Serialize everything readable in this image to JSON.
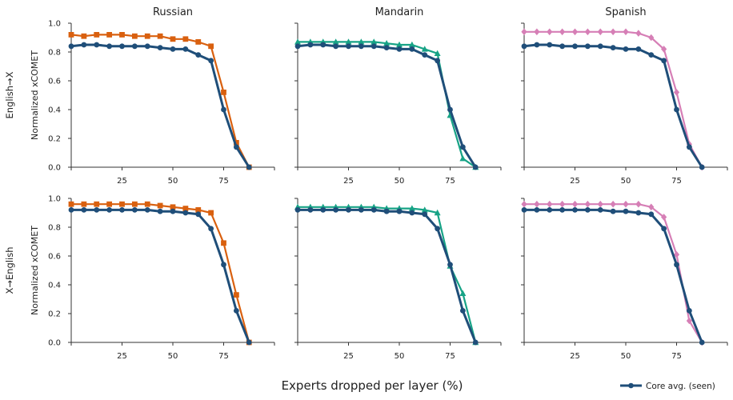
{
  "figure": {
    "xlabel": "Experts dropped per layer (%)",
    "column_titles": [
      "Russian",
      "Mandarin",
      "Spanish"
    ],
    "row_labels": [
      "English→X",
      "X→English"
    ],
    "ylabel": "Normalized xCOMET",
    "legend": {
      "label": "Core avg. (seen)",
      "color": "#1f4e79",
      "position": "bottom-right"
    }
  },
  "chart_data": [
    {
      "type": "line",
      "title": "Russian",
      "row": "English→X",
      "col": 0,
      "ylabel": "Normalized xCOMET",
      "xlim": [
        0,
        100
      ],
      "ylim": [
        0,
        1
      ],
      "xticks": [
        25,
        50,
        75
      ],
      "yticks": [
        0.0,
        0.2,
        0.4,
        0.6,
        0.8,
        1.0
      ],
      "x": [
        0,
        6.25,
        12.5,
        18.75,
        25,
        31.25,
        37.5,
        43.75,
        50,
        56.25,
        62.5,
        68.75,
        75,
        81.25,
        87.5
      ],
      "series": [
        {
          "name": "Core avg. (seen)",
          "color": "#1f4e79",
          "marker": "circle",
          "values": [
            0.84,
            0.85,
            0.85,
            0.84,
            0.84,
            0.84,
            0.84,
            0.83,
            0.82,
            0.82,
            0.78,
            0.74,
            0.4,
            0.14,
            0.0
          ]
        },
        {
          "color": "#d9600f",
          "marker": "square",
          "values": [
            0.92,
            0.91,
            0.92,
            0.92,
            0.92,
            0.91,
            0.91,
            0.91,
            0.89,
            0.89,
            0.87,
            0.84,
            0.52,
            0.17,
            0.0
          ]
        }
      ]
    },
    {
      "type": "line",
      "title": "Mandarin",
      "row": "English→X",
      "col": 1,
      "xlim": [
        0,
        100
      ],
      "ylim": [
        0,
        1
      ],
      "xticks": [
        25,
        50,
        75
      ],
      "yticks": [
        0.0,
        0.2,
        0.4,
        0.6,
        0.8,
        1.0
      ],
      "x": [
        0,
        6.25,
        12.5,
        18.75,
        25,
        31.25,
        37.5,
        43.75,
        50,
        56.25,
        62.5,
        68.75,
        75,
        81.25,
        87.5
      ],
      "series": [
        {
          "name": "Core avg. (seen)",
          "color": "#1f4e79",
          "marker": "circle",
          "values": [
            0.84,
            0.85,
            0.85,
            0.84,
            0.84,
            0.84,
            0.84,
            0.83,
            0.82,
            0.82,
            0.78,
            0.74,
            0.4,
            0.14,
            0.0
          ]
        },
        {
          "color": "#17a386",
          "marker": "triangle",
          "values": [
            0.87,
            0.87,
            0.87,
            0.87,
            0.87,
            0.87,
            0.87,
            0.86,
            0.85,
            0.85,
            0.82,
            0.79,
            0.36,
            0.06,
            0.0
          ]
        }
      ]
    },
    {
      "type": "line",
      "title": "Spanish",
      "row": "English→X",
      "col": 2,
      "xlim": [
        0,
        100
      ],
      "ylim": [
        0,
        1
      ],
      "xticks": [
        25,
        50,
        75
      ],
      "yticks": [
        0.0,
        0.2,
        0.4,
        0.6,
        0.8,
        1.0
      ],
      "x": [
        0,
        6.25,
        12.5,
        18.75,
        25,
        31.25,
        37.5,
        43.75,
        50,
        56.25,
        62.5,
        68.75,
        75,
        81.25,
        87.5
      ],
      "series": [
        {
          "name": "Core avg. (seen)",
          "color": "#1f4e79",
          "marker": "circle",
          "values": [
            0.84,
            0.85,
            0.85,
            0.84,
            0.84,
            0.84,
            0.84,
            0.83,
            0.82,
            0.82,
            0.78,
            0.74,
            0.4,
            0.14,
            0.0
          ]
        },
        {
          "color": "#d67fb6",
          "marker": "diamond",
          "values": [
            0.94,
            0.94,
            0.94,
            0.94,
            0.94,
            0.94,
            0.94,
            0.94,
            0.94,
            0.93,
            0.9,
            0.82,
            0.52,
            0.16,
            0.0
          ]
        }
      ]
    },
    {
      "type": "line",
      "row": "X→English",
      "col": 0,
      "ylabel": "Normalized xCOMET",
      "xlim": [
        0,
        100
      ],
      "ylim": [
        0,
        1
      ],
      "xticks": [
        25,
        50,
        75
      ],
      "yticks": [
        0.0,
        0.2,
        0.4,
        0.6,
        0.8,
        1.0
      ],
      "x": [
        0,
        6.25,
        12.5,
        18.75,
        25,
        31.25,
        37.5,
        43.75,
        50,
        56.25,
        62.5,
        68.75,
        75,
        81.25,
        87.5
      ],
      "series": [
        {
          "name": "Core avg. (seen)",
          "color": "#1f4e79",
          "marker": "circle",
          "values": [
            0.92,
            0.92,
            0.92,
            0.92,
            0.92,
            0.92,
            0.92,
            0.91,
            0.91,
            0.9,
            0.89,
            0.79,
            0.54,
            0.22,
            0.0
          ]
        },
        {
          "color": "#d9600f",
          "marker": "square",
          "values": [
            0.96,
            0.96,
            0.96,
            0.96,
            0.96,
            0.96,
            0.96,
            0.95,
            0.94,
            0.93,
            0.92,
            0.9,
            0.69,
            0.33,
            0.0
          ]
        }
      ]
    },
    {
      "type": "line",
      "row": "X→English",
      "col": 1,
      "xlim": [
        0,
        100
      ],
      "ylim": [
        0,
        1
      ],
      "xticks": [
        25,
        50,
        75
      ],
      "yticks": [
        0.0,
        0.2,
        0.4,
        0.6,
        0.8,
        1.0
      ],
      "x": [
        0,
        6.25,
        12.5,
        18.75,
        25,
        31.25,
        37.5,
        43.75,
        50,
        56.25,
        62.5,
        68.75,
        75,
        81.25,
        87.5
      ],
      "series": [
        {
          "name": "Core avg. (seen)",
          "color": "#1f4e79",
          "marker": "circle",
          "values": [
            0.92,
            0.92,
            0.92,
            0.92,
            0.92,
            0.92,
            0.92,
            0.91,
            0.91,
            0.9,
            0.89,
            0.79,
            0.54,
            0.22,
            0.0
          ]
        },
        {
          "color": "#17a386",
          "marker": "triangle",
          "values": [
            0.94,
            0.94,
            0.94,
            0.94,
            0.94,
            0.94,
            0.94,
            0.93,
            0.93,
            0.93,
            0.92,
            0.9,
            0.53,
            0.34,
            0.0
          ]
        }
      ]
    },
    {
      "type": "line",
      "row": "X→English",
      "col": 2,
      "xlim": [
        0,
        100
      ],
      "ylim": [
        0,
        1
      ],
      "xticks": [
        25,
        50,
        75
      ],
      "yticks": [
        0.0,
        0.2,
        0.4,
        0.6,
        0.8,
        1.0
      ],
      "x": [
        0,
        6.25,
        12.5,
        18.75,
        25,
        31.25,
        37.5,
        43.75,
        50,
        56.25,
        62.5,
        68.75,
        75,
        81.25,
        87.5
      ],
      "series": [
        {
          "name": "Core avg. (seen)",
          "color": "#1f4e79",
          "marker": "circle",
          "values": [
            0.92,
            0.92,
            0.92,
            0.92,
            0.92,
            0.92,
            0.92,
            0.91,
            0.91,
            0.9,
            0.89,
            0.79,
            0.54,
            0.22,
            0.0
          ]
        },
        {
          "color": "#d67fb6",
          "marker": "diamond",
          "values": [
            0.96,
            0.96,
            0.96,
            0.96,
            0.96,
            0.96,
            0.96,
            0.96,
            0.96,
            0.96,
            0.94,
            0.87,
            0.61,
            0.15,
            0.0
          ]
        }
      ]
    }
  ]
}
